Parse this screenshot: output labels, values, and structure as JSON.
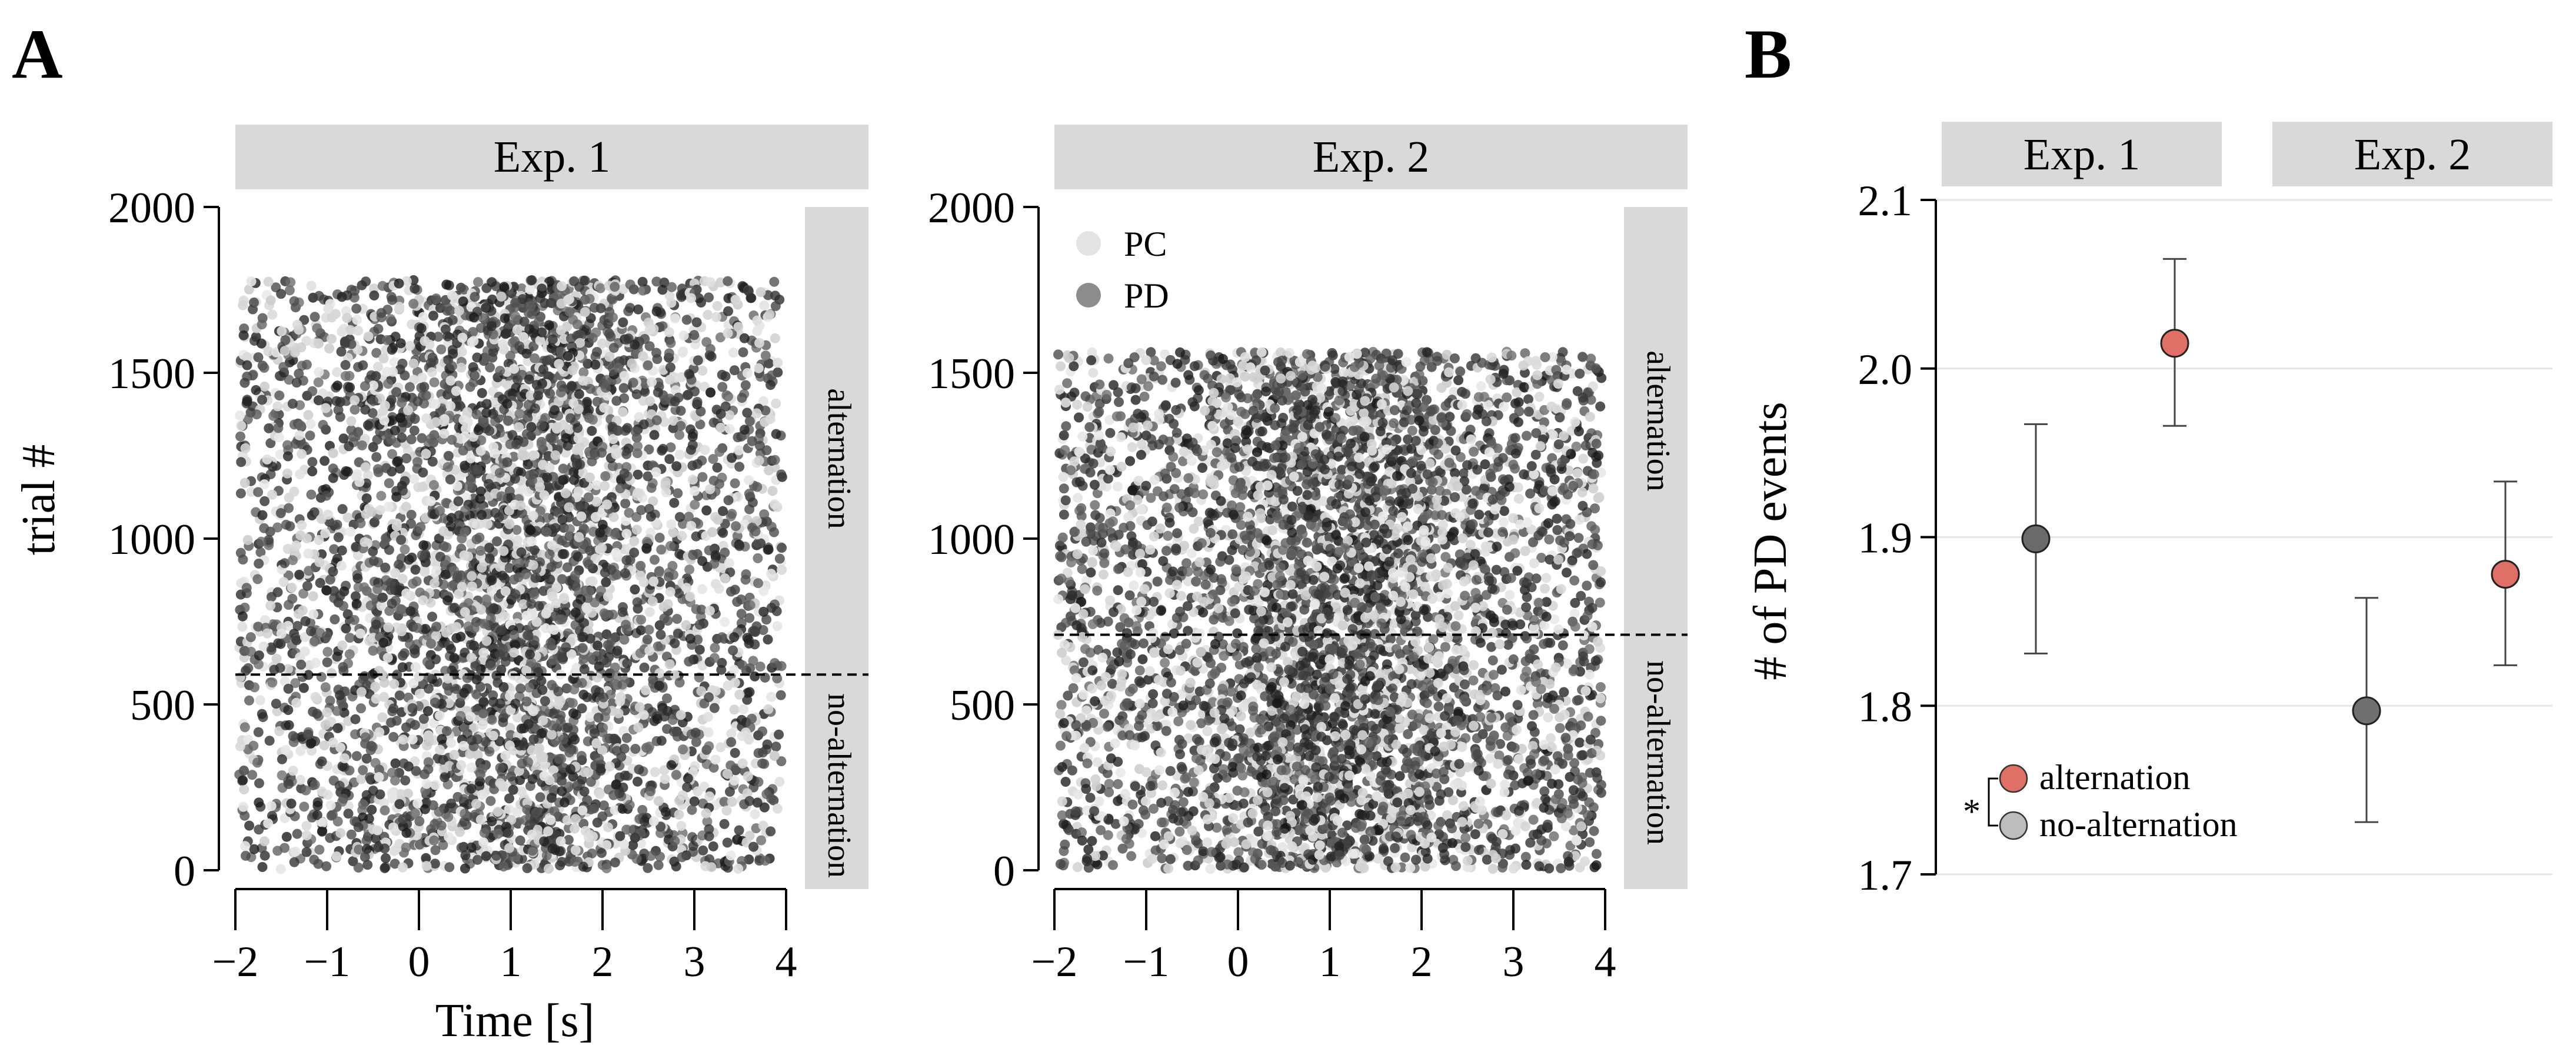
{
  "panel_labels": {
    "a": "A",
    "b": "B"
  },
  "colors": {
    "strip_bg": "#d9d9d9",
    "pc": "#dddddd",
    "pd": "#2b2b2b",
    "alternation": "#e07066",
    "no_alternation": "#b9b9b9",
    "no_alternation_exp": "#6e6e6e"
  },
  "chart_data": [
    {
      "panel": "A",
      "type": "scatter",
      "subtype": "raster",
      "xlabel": "Time [s]",
      "ylabel": "trial #",
      "xlim": [
        -2,
        4
      ],
      "ylim": [
        0,
        2000
      ],
      "xticks": [
        -2,
        -1,
        0,
        1,
        2,
        3,
        4
      ],
      "xtick_labels": [
        "−2",
        "−1",
        "0",
        "1",
        "2",
        "3",
        "4"
      ],
      "yticks": [
        0,
        500,
        1000,
        1500,
        2000
      ],
      "ytick_labels": [
        "0",
        "500",
        "1000",
        "1500",
        "2000"
      ],
      "legend": {
        "position": "top-left",
        "entries": [
          "PC",
          "PD"
        ]
      },
      "facets": [
        {
          "title": "Exp. 1",
          "n_trials": 1790,
          "split_trial": 590,
          "conditions": {
            "upper": "alternation",
            "lower": "no-alternation"
          }
        },
        {
          "title": "Exp. 2",
          "n_trials": 1575,
          "split_trial": 710,
          "conditions": {
            "upper": "alternation",
            "lower": "no-alternation"
          }
        }
      ]
    },
    {
      "panel": "B",
      "type": "scatter",
      "subtype": "point-errorbar",
      "ylabel": "# of PD events",
      "ylim": [
        1.7,
        2.1
      ],
      "yticks": [
        1.7,
        1.8,
        1.9,
        2.0,
        2.1
      ],
      "ytick_labels": [
        "1.7",
        "1.8",
        "1.9",
        "2.0",
        "2.1"
      ],
      "grid": true,
      "legend": {
        "position": "bottom-left",
        "marker": "*",
        "entries": [
          "alternation",
          "no-alternation"
        ]
      },
      "facets": [
        "Exp. 1",
        "Exp. 2"
      ],
      "series": [
        {
          "name": "no-alternation",
          "points": [
            {
              "facet": "Exp. 1",
              "y": 1.899,
              "ymin": 1.831,
              "ymax": 1.967
            },
            {
              "facet": "Exp. 2",
              "y": 1.797,
              "ymin": 1.731,
              "ymax": 1.864
            }
          ]
        },
        {
          "name": "alternation",
          "points": [
            {
              "facet": "Exp. 1",
              "y": 2.015,
              "ymin": 1.966,
              "ymax": 2.065
            },
            {
              "facet": "Exp. 2",
              "y": 1.878,
              "ymin": 1.824,
              "ymax": 1.933
            }
          ]
        }
      ]
    }
  ]
}
